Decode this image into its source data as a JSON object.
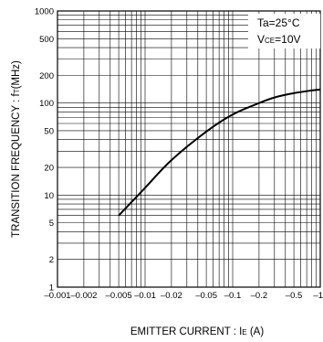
{
  "chart_data": {
    "type": "line",
    "x_scale": "log",
    "y_scale": "log",
    "xlim": [
      0.001,
      1
    ],
    "ylim": [
      1,
      1000
    ],
    "grid": true,
    "x_gridlines": [
      0.002,
      0.003,
      0.004,
      0.005,
      0.006,
      0.007,
      0.008,
      0.009,
      0.01,
      0.02,
      0.03,
      0.04,
      0.05,
      0.06,
      0.07,
      0.08,
      0.09,
      0.1,
      0.2,
      0.3,
      0.4,
      0.5,
      0.6,
      0.7,
      0.8,
      0.9
    ],
    "y_gridlines": [
      2,
      3,
      4,
      5,
      6,
      7,
      8,
      9,
      10,
      20,
      30,
      40,
      50,
      60,
      70,
      80,
      90,
      100,
      200,
      300,
      400,
      500,
      600,
      700,
      800,
      900
    ],
    "x_ticks": [
      {
        "value": 0.001,
        "label": "–0.001"
      },
      {
        "value": 0.002,
        "label": "–0.002"
      },
      {
        "value": 0.005,
        "label": "–0.005"
      },
      {
        "value": 0.01,
        "label": "–0.01"
      },
      {
        "value": 0.02,
        "label": "–0.02"
      },
      {
        "value": 0.05,
        "label": "–0.05"
      },
      {
        "value": 0.1,
        "label": "–0.1"
      },
      {
        "value": 0.2,
        "label": "–0.2"
      },
      {
        "value": 0.5,
        "label": "–0.5"
      },
      {
        "value": 1,
        "label": "–1"
      }
    ],
    "y_ticks": [
      {
        "value": 1,
        "label": "1"
      },
      {
        "value": 2,
        "label": "2"
      },
      {
        "value": 5,
        "label": "5"
      },
      {
        "value": 10,
        "label": "10"
      },
      {
        "value": 20,
        "label": "20"
      },
      {
        "value": 50,
        "label": "50"
      },
      {
        "value": 100,
        "label": "100"
      },
      {
        "value": 200,
        "label": "200"
      },
      {
        "value": 500,
        "label": "500"
      },
      {
        "value": 1000,
        "label": "1000"
      }
    ],
    "series": [
      {
        "x": [
          -0.005,
          -0.01,
          -0.02,
          -0.05,
          -0.1,
          -0.2,
          -0.3,
          -0.5,
          -0.8,
          -1
        ],
        "y": [
          6,
          12,
          24,
          49,
          75,
          100,
          115,
          128,
          137,
          140
        ]
      }
    ],
    "xlabel": {
      "main": "EMITTER CURRENT : I",
      "sub": "E",
      "unit": " (A)"
    },
    "ylabel": {
      "main": "TRANSITION FREQUENCY : f",
      "sub": "T",
      "unit": "(MHz)"
    },
    "annotations": [
      {
        "main": "Ta=25°C",
        "sub": "",
        "tail": ""
      },
      {
        "main": "V",
        "sub": "CE",
        "tail": "=10V"
      }
    ]
  }
}
